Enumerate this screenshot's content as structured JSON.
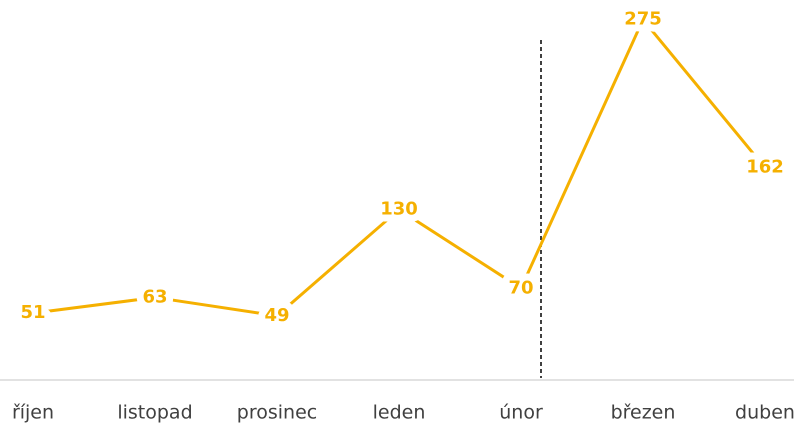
{
  "chart_data": {
    "type": "line",
    "categories": [
      "říjen",
      "listopad",
      "prosinec",
      "leden",
      "únor",
      "březen",
      "duben"
    ],
    "values": [
      51,
      63,
      49,
      130,
      70,
      275,
      162
    ],
    "color": "#f5b000",
    "ylim": [
      0,
      290
    ]
  }
}
